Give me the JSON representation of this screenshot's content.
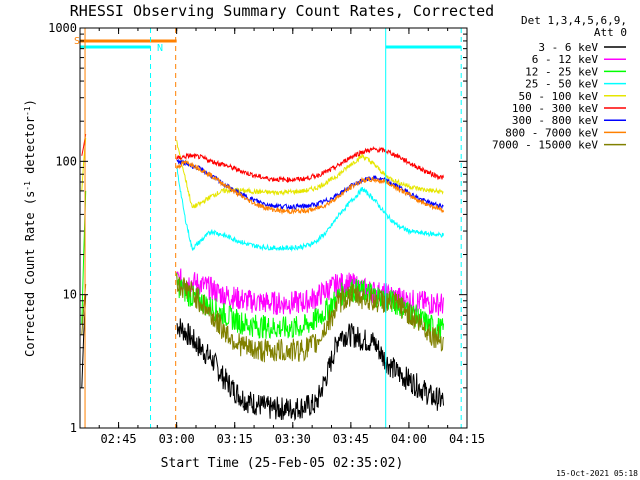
{
  "chart_data": {
    "type": "line",
    "title": "RHESSI Observing Summary Count Rates, Corrected",
    "xlabel": "Start Time (25-Feb-05 02:35:02)",
    "ylabel_main": "Corrected Count Rate (s",
    "ylabel_sup1": "-1",
    "ylabel_mid": " detector",
    "ylabel_sup2": "-1",
    "ylabel_end": ")",
    "xlim": [
      "02:35:02",
      "04:15:00"
    ],
    "ylim": [
      1,
      1000
    ],
    "yscale": "log",
    "x_ticks": [
      "02:45",
      "03:00",
      "03:15",
      "03:30",
      "03:45",
      "04:00",
      "04:15"
    ],
    "y_ticks": [
      "1",
      "10",
      "100",
      "1000"
    ],
    "legend_header": [
      "Det 1,3,4,5,6,9,",
      "Att 0"
    ],
    "legend_position": "right",
    "flag_labels": [
      "S",
      "N"
    ],
    "timestamp": "15-Oct-2021 05:18",
    "series": [
      {
        "name": "3 - 6 keV",
        "color": "#000000",
        "x": [
          "03:00",
          "03:03",
          "03:06",
          "03:09",
          "03:12",
          "03:15",
          "03:18",
          "03:21",
          "03:24",
          "03:27",
          "03:30",
          "03:33",
          "03:36",
          "03:39",
          "03:42",
          "03:45",
          "03:48",
          "03:51",
          "03:54",
          "03:57",
          "04:00",
          "04:03",
          "04:06",
          "04:09"
        ],
        "y": [
          6,
          5,
          4,
          3.3,
          2.4,
          1.9,
          1.6,
          1.5,
          1.4,
          1.4,
          1.4,
          1.45,
          1.5,
          2.6,
          5,
          5,
          4.6,
          4.4,
          3.2,
          2.6,
          2.3,
          2.0,
          1.7,
          1.6
        ]
      },
      {
        "name": "6 - 12 keV",
        "color": "#ff00ff",
        "x": [
          "03:00",
          "03:03",
          "03:06",
          "03:09",
          "03:12",
          "03:15",
          "03:18",
          "03:21",
          "03:24",
          "03:27",
          "03:30",
          "03:33",
          "03:36",
          "03:39",
          "03:42",
          "03:45",
          "03:48",
          "03:51",
          "03:54",
          "03:57",
          "04:00",
          "04:03",
          "04:06",
          "04:09"
        ],
        "y": [
          13,
          12.5,
          12,
          11,
          10,
          9.5,
          9,
          8.8,
          8.7,
          8.6,
          8.7,
          8.8,
          9.5,
          11,
          12,
          12,
          11,
          10.5,
          10,
          9.5,
          9,
          8.8,
          8.6,
          8.5
        ]
      },
      {
        "name": "12 - 25 keV",
        "color": "#00ff00",
        "x": [
          "03:00",
          "03:03",
          "03:06",
          "03:09",
          "03:12",
          "03:15",
          "03:18",
          "03:21",
          "03:24",
          "03:27",
          "03:30",
          "03:33",
          "03:36",
          "03:39",
          "03:42",
          "03:45",
          "03:48",
          "03:51",
          "03:54",
          "03:57",
          "04:00",
          "04:03",
          "04:06",
          "04:09"
        ],
        "y": [
          12,
          10,
          9,
          8,
          7.2,
          6.5,
          6,
          5.8,
          5.7,
          5.6,
          5.6,
          5.8,
          6.5,
          7.8,
          9.8,
          11,
          10.5,
          10,
          9.2,
          8.5,
          7.5,
          6.5,
          5.8,
          5.4
        ]
      },
      {
        "name": "25 - 50 keV",
        "color": "#00ffff",
        "x": [
          "03:00",
          "03:02",
          "03:04",
          "03:06",
          "03:09",
          "03:12",
          "03:15",
          "03:18",
          "03:21",
          "03:24",
          "03:27",
          "03:30",
          "03:33",
          "03:36",
          "03:39",
          "03:42",
          "03:45",
          "03:48",
          "03:51",
          "03:54",
          "03:57",
          "04:00",
          "04:03",
          "04:06",
          "04:09"
        ],
        "y": [
          90,
          40,
          22,
          25,
          30,
          28,
          26,
          24,
          23,
          22.5,
          22.3,
          22.5,
          23,
          25,
          30,
          40,
          50,
          62,
          52,
          40,
          33,
          30,
          29,
          28.5,
          28
        ]
      },
      {
        "name": "50 - 100 keV",
        "color": "#e6e600",
        "x": [
          "03:00",
          "03:02",
          "03:04",
          "03:06",
          "03:09",
          "03:12",
          "03:15",
          "03:18",
          "03:21",
          "03:24",
          "03:27",
          "03:30",
          "03:33",
          "03:36",
          "03:39",
          "03:42",
          "03:45",
          "03:48",
          "03:51",
          "03:54",
          "03:57",
          "04:00",
          "04:03",
          "04:06",
          "04:09"
        ],
        "y": [
          140,
          80,
          45,
          48,
          55,
          60,
          61,
          60,
          59,
          58.5,
          58.5,
          59,
          60,
          63,
          70,
          80,
          95,
          110,
          95,
          78,
          70,
          65,
          62,
          60,
          59
        ]
      },
      {
        "name": "100 - 300 keV",
        "color": "#ff0000",
        "x": [
          "03:00",
          "03:03",
          "03:06",
          "03:09",
          "03:12",
          "03:15",
          "03:18",
          "03:21",
          "03:24",
          "03:27",
          "03:30",
          "03:33",
          "03:36",
          "03:39",
          "03:42",
          "03:45",
          "03:48",
          "03:51",
          "03:54",
          "03:57",
          "04:00",
          "04:03",
          "04:06",
          "04:09"
        ],
        "y": [
          105,
          110,
          108,
          100,
          95,
          88,
          82,
          77,
          74,
          73,
          73,
          74,
          78,
          84,
          94,
          108,
          118,
          123,
          120,
          110,
          98,
          88,
          80,
          75
        ]
      },
      {
        "name": "300 - 800 keV",
        "color": "#0000ff",
        "x": [
          "03:00",
          "03:03",
          "03:06",
          "03:09",
          "03:12",
          "03:15",
          "03:18",
          "03:21",
          "03:24",
          "03:27",
          "03:30",
          "03:33",
          "03:36",
          "03:39",
          "03:42",
          "03:45",
          "03:48",
          "03:51",
          "03:54",
          "03:57",
          "04:00",
          "04:03",
          "04:06",
          "04:09"
        ],
        "y": [
          100,
          95,
          88,
          78,
          68,
          60,
          54,
          50,
          47,
          46,
          45.5,
          46,
          47.5,
          51,
          57,
          65,
          72,
          75,
          72,
          65,
          58,
          52,
          48,
          46
        ]
      },
      {
        "name": "800 - 7000 keV",
        "color": "#ff8000",
        "x": [
          "03:00",
          "03:02",
          "03:04",
          "03:06",
          "03:09",
          "03:12",
          "03:15",
          "03:18",
          "03:21",
          "03:24",
          "03:27",
          "03:30",
          "03:33",
          "03:36",
          "03:39",
          "03:42",
          "03:45",
          "03:48",
          "03:51",
          "03:54",
          "03:57",
          "04:00",
          "04:03",
          "04:06",
          "04:09"
        ],
        "y": [
          90,
          98,
          95,
          88,
          78,
          68,
          59,
          52,
          47,
          44,
          42.5,
          42,
          42.5,
          44,
          48,
          55,
          64,
          72,
          73,
          70,
          63,
          56,
          50,
          46,
          43
        ]
      },
      {
        "name": "7000 - 15000 keV",
        "color": "#808000",
        "x": [
          "03:00",
          "03:03",
          "03:06",
          "03:09",
          "03:12",
          "03:15",
          "03:18",
          "03:21",
          "03:24",
          "03:27",
          "03:30",
          "03:33",
          "03:36",
          "03:39",
          "03:42",
          "03:45",
          "03:48",
          "03:51",
          "03:54",
          "03:57",
          "04:00",
          "04:03",
          "04:06",
          "04:09"
        ],
        "y": [
          12,
          11,
          9,
          7,
          5.5,
          4.5,
          4,
          3.8,
          3.8,
          3.8,
          3.8,
          3.9,
          4.3,
          6,
          8.8,
          10,
          9.5,
          9,
          8.8,
          8.5,
          7.2,
          6,
          5,
          4.5
        ]
      }
    ],
    "pre_gap_series": [
      {
        "name": "3 - 6 keV",
        "x": [
          "02:35:30",
          "02:36:00",
          "02:36:30"
        ],
        "y": [
          2,
          5,
          10
        ]
      },
      {
        "name": "12 - 25 keV",
        "x": [
          "02:35:30",
          "02:36:00",
          "02:36:30"
        ],
        "y": [
          6,
          20,
          60
        ]
      },
      {
        "name": "50 - 100 keV",
        "x": [
          "02:35:30",
          "02:36:00",
          "02:36:30"
        ],
        "y": [
          60,
          100,
          150
        ]
      },
      {
        "name": "100 - 300 keV",
        "x": [
          "02:35:30",
          "02:36:00",
          "02:36:30"
        ],
        "y": [
          110,
          130,
          160
        ]
      },
      {
        "name": "7000 - 15000 keV",
        "x": [
          "02:35:30",
          "02:36:00",
          "02:36:30"
        ],
        "y": [
          5,
          8,
          12
        ]
      }
    ],
    "night_intervals": [
      [
        "02:35:02",
        "02:53:15"
      ],
      [
        "03:54:00",
        "04:13:30"
      ]
    ],
    "saa_interval": [
      "02:35:02",
      "03:00:00"
    ],
    "vertical_markers": [
      {
        "time": "02:36:20",
        "color": "#ff8000",
        "style": "solid"
      },
      {
        "time": "02:53:15",
        "color": "#00ffff",
        "style": "dashed"
      },
      {
        "time": "02:59:45",
        "color": "#ff8000",
        "style": "dashed"
      },
      {
        "time": "03:54:00",
        "color": "#00ffff",
        "style": "solid"
      },
      {
        "time": "04:13:30",
        "color": "#00ffff",
        "style": "dashed"
      }
    ]
  }
}
